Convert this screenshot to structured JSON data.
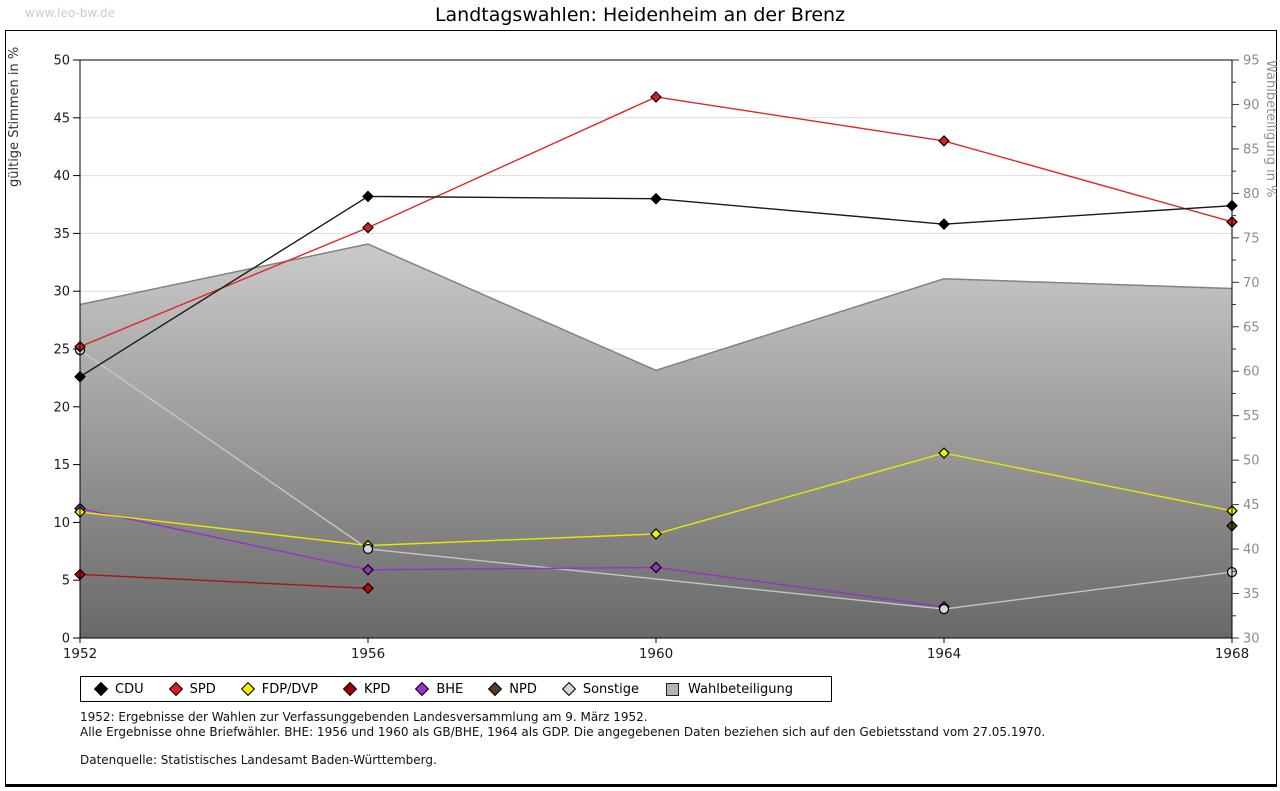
{
  "header": {
    "watermark": "www.leo-bw.de"
  },
  "chart_data": {
    "type": "line",
    "title": "Landtagswahlen: Heidenheim an der Brenz",
    "x": [
      1952,
      1956,
      1960,
      1964,
      1968
    ],
    "axes": {
      "left": {
        "label": "gültige Stimmen in %",
        "min": 0,
        "max": 50,
        "tick_step": 5
      },
      "right": {
        "label": "Wahlbeteiligung in %",
        "min": 30,
        "max": 95,
        "tick_step": 5,
        "minor_step": 2.5
      }
    },
    "grid": "horizontal",
    "legend_position": "bottom",
    "series": [
      {
        "name": "CDU",
        "axis": "left",
        "line_color": "#1a1a1a",
        "marker_color": "#000000",
        "marker": "diamond",
        "line_z": 7,
        "marker_z": 7,
        "values": [
          22.6,
          38.2,
          38.0,
          35.8,
          37.4
        ]
      },
      {
        "name": "SPD",
        "axis": "left",
        "line_color": "#e02626",
        "marker_color": "#dd1c1c",
        "marker": "diamond",
        "line_z": 6,
        "marker_z": 6,
        "values": [
          25.2,
          35.5,
          46.8,
          43.0,
          36.0
        ]
      },
      {
        "name": "FDP/DVP",
        "axis": "left",
        "line_color": "#e9e900",
        "marker_color": "#f2f200",
        "marker": "diamond",
        "line_z": 5,
        "marker_z": 4,
        "values": [
          10.9,
          8.0,
          9.0,
          16.0,
          11.0
        ]
      },
      {
        "name": "KPD",
        "axis": "left",
        "line_color": "#a51515",
        "marker_color": "#c40000",
        "marker": "diamond",
        "line_z": 2,
        "marker_z": 1,
        "values": [
          5.5,
          4.3,
          null,
          null,
          null
        ]
      },
      {
        "name": "BHE",
        "axis": "left",
        "line_color": "#9a30c8",
        "marker_color": "#9932cc",
        "marker": "diamond",
        "line_z": 3,
        "marker_z": 2,
        "values": [
          11.2,
          5.9,
          6.1,
          2.7,
          null
        ]
      },
      {
        "name": "NPD",
        "axis": "left",
        "line_color": "#5c3a28",
        "marker_color": "#5c3a28",
        "marker": "diamond",
        "line_z": 4,
        "marker_z": 3,
        "values": [
          null,
          null,
          null,
          null,
          9.7
        ]
      },
      {
        "name": "Sonstige",
        "axis": "left",
        "line_color": "#c6c6c6",
        "marker_color": "#d6d6d6",
        "marker": "circle",
        "line_z": 1,
        "marker_z": 5,
        "values": [
          24.9,
          7.7,
          null,
          2.5,
          5.7
        ]
      }
    ],
    "area_series": {
      "name": "Wahlbeteiligung",
      "axis": "right",
      "values": [
        67.5,
        74.3,
        60.1,
        70.4,
        69.3
      ],
      "stroke": "#828282",
      "gradient_top": "#f7f7f7",
      "gradient_bottom": "#696969"
    }
  },
  "legend": {
    "items": [
      {
        "label": "CDU",
        "color": "#000000",
        "shape": "diamond"
      },
      {
        "label": "SPD",
        "color": "#dd1c1c",
        "shape": "diamond"
      },
      {
        "label": "FDP/DVP",
        "color": "#f2f200",
        "shape": "diamond"
      },
      {
        "label": "KPD",
        "color": "#a00000",
        "shape": "diamond"
      },
      {
        "label": "BHE",
        "color": "#9932cc",
        "shape": "diamond"
      },
      {
        "label": "NPD",
        "color": "#5c3a28",
        "shape": "diamond"
      },
      {
        "label": "Sonstige",
        "color": "#d6d6d6",
        "shape": "diamond"
      },
      {
        "label": "Wahlbeteiligung",
        "color": "#b4b4b4",
        "shape": "square"
      }
    ]
  },
  "footnotes": {
    "line1": "1952: Ergebnisse der Wahlen zur Verfassunggebenden Landesversammlung am 9. März 1952.",
    "line2": "Alle Ergebnisse ohne Briefwähler. BHE: 1956 und 1960 als GB/BHE, 1964 als GDP. Die angegebenen Daten beziehen sich auf den Gebietsstand vom 27.05.1970.",
    "line3": "Datenquelle: Statistisches Landesamt Baden-Württemberg."
  }
}
